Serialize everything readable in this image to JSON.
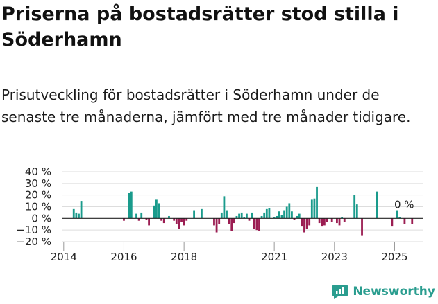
{
  "title": "Priserna på bostadsrätter stod stilla i Söderhamn",
  "subtitle": "Prisutveckling för bostadsrätter i Söderhamn under de senaste tre månaderna, jämfört med tre månader tidigare.",
  "brand": {
    "name": "Newsworthy",
    "icon": "newsworthy-logo-icon"
  },
  "colors": {
    "positive": "#1a9b8c",
    "negative": "#9b1d52",
    "zero_line": "#222222",
    "grid": "#dddddd"
  },
  "chart_data": {
    "type": "bar",
    "x_start": "2014-01",
    "x_end": "2025-12",
    "xticks": [
      {
        "date": "2014-01",
        "label": "2014"
      },
      {
        "date": "2016-01",
        "label": "2016"
      },
      {
        "date": "2018-01",
        "label": "2018"
      },
      {
        "date": "2021-01",
        "label": "2021"
      },
      {
        "date": "2023-01",
        "label": "2023"
      },
      {
        "date": "2025-01",
        "label": "2025"
      }
    ],
    "yticks": [
      {
        "value": 40,
        "label": "40 %"
      },
      {
        "value": 30,
        "label": "30 %"
      },
      {
        "value": 20,
        "label": "20 %"
      },
      {
        "value": 10,
        "label": "10 %"
      },
      {
        "value": 0,
        "label": "0 %"
      },
      {
        "value": -10,
        "label": "−10 %"
      },
      {
        "value": -20,
        "label": "−20 %"
      }
    ],
    "ylim": [
      -20,
      40
    ],
    "last_value_label": "0 %",
    "points": [
      [
        "2014-05",
        8
      ],
      [
        "2014-06",
        5
      ],
      [
        "2014-07",
        4
      ],
      [
        "2014-08",
        15
      ],
      [
        "2016-01",
        -2
      ],
      [
        "2016-03",
        22
      ],
      [
        "2016-04",
        23
      ],
      [
        "2016-06",
        4
      ],
      [
        "2016-07",
        -2
      ],
      [
        "2016-08",
        5
      ],
      [
        "2016-10",
        -1
      ],
      [
        "2016-11",
        -6
      ],
      [
        "2017-01",
        11
      ],
      [
        "2017-02",
        16
      ],
      [
        "2017-03",
        13
      ],
      [
        "2017-04",
        -2
      ],
      [
        "2017-05",
        -4
      ],
      [
        "2017-07",
        2
      ],
      [
        "2017-09",
        -2
      ],
      [
        "2017-10",
        -5
      ],
      [
        "2017-11",
        -9
      ],
      [
        "2017-12",
        -3
      ],
      [
        "2018-01",
        -6
      ],
      [
        "2018-02",
        -2
      ],
      [
        "2018-05",
        7
      ],
      [
        "2018-08",
        8
      ],
      [
        "2019-01",
        -6
      ],
      [
        "2019-02",
        -12
      ],
      [
        "2019-03",
        -5
      ],
      [
        "2019-04",
        5
      ],
      [
        "2019-05",
        19
      ],
      [
        "2019-06",
        7
      ],
      [
        "2019-07",
        -5
      ],
      [
        "2019-08",
        -11
      ],
      [
        "2019-09",
        -4
      ],
      [
        "2019-10",
        2
      ],
      [
        "2019-11",
        4
      ],
      [
        "2019-12",
        5
      ],
      [
        "2020-01",
        1
      ],
      [
        "2020-02",
        4
      ],
      [
        "2020-03",
        -2
      ],
      [
        "2020-04",
        5
      ],
      [
        "2020-05",
        -9
      ],
      [
        "2020-06",
        -10
      ],
      [
        "2020-07",
        -11
      ],
      [
        "2020-08",
        2
      ],
      [
        "2020-09",
        5
      ],
      [
        "2020-10",
        8
      ],
      [
        "2020-11",
        9
      ],
      [
        "2021-01",
        1
      ],
      [
        "2021-02",
        2
      ],
      [
        "2021-03",
        6
      ],
      [
        "2021-04",
        3
      ],
      [
        "2021-05",
        7
      ],
      [
        "2021-06",
        10
      ],
      [
        "2021-07",
        13
      ],
      [
        "2021-08",
        6
      ],
      [
        "2021-09",
        -1
      ],
      [
        "2021-10",
        2
      ],
      [
        "2021-11",
        4
      ],
      [
        "2021-12",
        -7
      ],
      [
        "2022-01",
        -12
      ],
      [
        "2022-02",
        -9
      ],
      [
        "2022-03",
        -6
      ],
      [
        "2022-04",
        16
      ],
      [
        "2022-05",
        17
      ],
      [
        "2022-06",
        27
      ],
      [
        "2022-07",
        -4
      ],
      [
        "2022-08",
        -7
      ],
      [
        "2022-09",
        -6
      ],
      [
        "2022-10",
        -3
      ],
      [
        "2022-12",
        -3
      ],
      [
        "2023-02",
        -4
      ],
      [
        "2023-03",
        -6
      ],
      [
        "2023-04",
        1
      ],
      [
        "2023-05",
        -3
      ],
      [
        "2023-09",
        20
      ],
      [
        "2023-10",
        12
      ],
      [
        "2023-12",
        -15
      ],
      [
        "2024-06",
        23
      ],
      [
        "2024-12",
        -7
      ],
      [
        "2025-02",
        7
      ],
      [
        "2025-03",
        1
      ],
      [
        "2025-05",
        -5
      ],
      [
        "2025-08",
        -5
      ]
    ]
  }
}
